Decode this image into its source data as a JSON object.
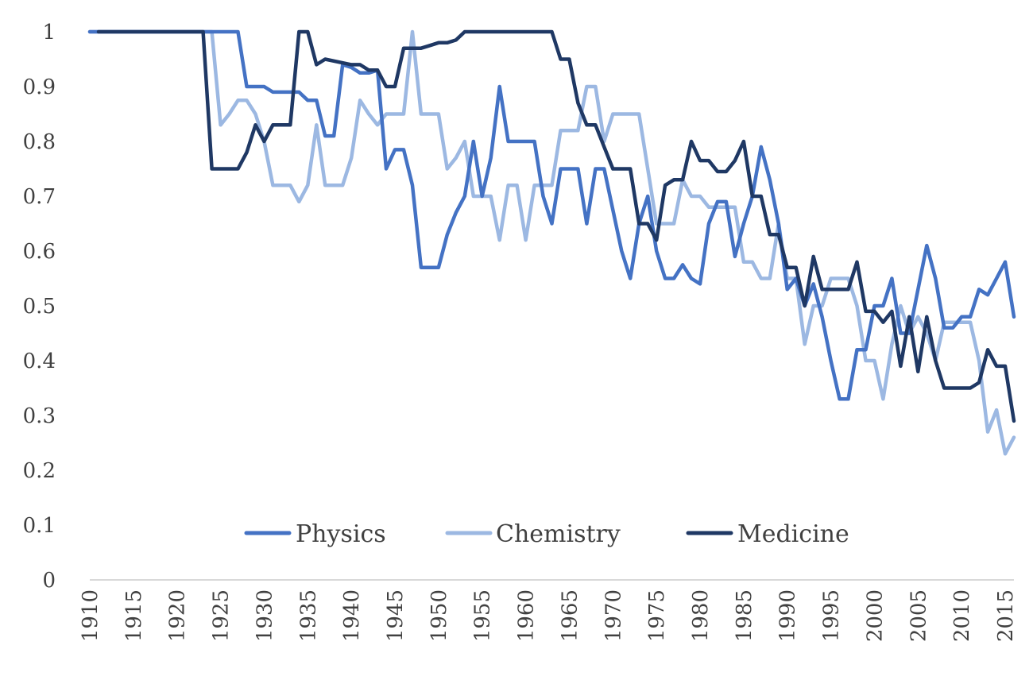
{
  "chart_data": {
    "type": "line",
    "title": "",
    "xlabel": "",
    "ylabel": "",
    "ylim": [
      0,
      1
    ],
    "yticks": [
      "0",
      "0.1",
      "0.2",
      "0.3",
      "0.4",
      "0.5",
      "0.6",
      "0.7",
      "0.8",
      "0.9",
      "1"
    ],
    "xlim": [
      1910,
      2016
    ],
    "xticks": [
      "1910",
      "1915",
      "1920",
      "1925",
      "1930",
      "1935",
      "1940",
      "1945",
      "1950",
      "1955",
      "1960",
      "1965",
      "1970",
      "1975",
      "1980",
      "1985",
      "1990",
      "1995",
      "2000",
      "2005",
      "2010",
      "2015"
    ],
    "grid": false,
    "legend_position": "bottom-center",
    "series": [
      {
        "name": "Physics",
        "color": "#4472c4",
        "points": [
          [
            1910,
            1
          ],
          [
            1924,
            1
          ],
          [
            1926,
            1
          ],
          [
            1927,
            1
          ],
          [
            1928,
            0.9
          ],
          [
            1930,
            0.9
          ],
          [
            1931,
            0.89
          ],
          [
            1934,
            0.89
          ],
          [
            1935,
            0.875
          ],
          [
            1936,
            0.875
          ],
          [
            1937,
            0.81
          ],
          [
            1938,
            0.81
          ],
          [
            1939,
            0.94
          ],
          [
            1940,
            0.935
          ],
          [
            1941,
            0.925
          ],
          [
            1942,
            0.925
          ],
          [
            1943,
            0.93
          ],
          [
            1944,
            0.75
          ],
          [
            1945,
            0.785
          ],
          [
            1946,
            0.785
          ],
          [
            1947,
            0.72
          ],
          [
            1948,
            0.57
          ],
          [
            1950,
            0.57
          ],
          [
            1951,
            0.63
          ],
          [
            1952,
            0.67
          ],
          [
            1953,
            0.7
          ],
          [
            1954,
            0.8
          ],
          [
            1955,
            0.7
          ],
          [
            1956,
            0.77
          ],
          [
            1957,
            0.9
          ],
          [
            1958,
            0.8
          ],
          [
            1961,
            0.8
          ],
          [
            1962,
            0.7
          ],
          [
            1963,
            0.65
          ],
          [
            1964,
            0.75
          ],
          [
            1966,
            0.75
          ],
          [
            1967,
            0.65
          ],
          [
            1968,
            0.75
          ],
          [
            1969,
            0.75
          ],
          [
            1971,
            0.6
          ],
          [
            1972,
            0.55
          ],
          [
            1973,
            0.65
          ],
          [
            1974,
            0.7
          ],
          [
            1975,
            0.6
          ],
          [
            1976,
            0.55
          ],
          [
            1977,
            0.55
          ],
          [
            1978,
            0.575
          ],
          [
            1979,
            0.55
          ],
          [
            1980,
            0.54
          ],
          [
            1981,
            0.65
          ],
          [
            1982,
            0.69
          ],
          [
            1983,
            0.69
          ],
          [
            1984,
            0.59
          ],
          [
            1985,
            0.65
          ],
          [
            1986,
            0.7
          ],
          [
            1987,
            0.79
          ],
          [
            1988,
            0.73
          ],
          [
            1989,
            0.65
          ],
          [
            1990,
            0.53
          ],
          [
            1991,
            0.55
          ],
          [
            1992,
            0.5
          ],
          [
            1993,
            0.54
          ],
          [
            1994,
            0.48
          ],
          [
            1995,
            0.4
          ],
          [
            1996,
            0.33
          ],
          [
            1997,
            0.33
          ],
          [
            1998,
            0.42
          ],
          [
            1999,
            0.42
          ],
          [
            2000,
            0.5
          ],
          [
            2001,
            0.5
          ],
          [
            2002,
            0.55
          ],
          [
            2003,
            0.45
          ],
          [
            2004,
            0.45
          ],
          [
            2005,
            0.53
          ],
          [
            2006,
            0.61
          ],
          [
            2007,
            0.55
          ],
          [
            2008,
            0.46
          ],
          [
            2009,
            0.46
          ],
          [
            2010,
            0.48
          ],
          [
            2011,
            0.48
          ],
          [
            2012,
            0.53
          ],
          [
            2013,
            0.52
          ],
          [
            2014,
            0.55
          ],
          [
            2015,
            0.58
          ],
          [
            2016,
            0.48
          ]
        ]
      },
      {
        "name": "Chemistry",
        "color": "#9cb8e2",
        "points": [
          [
            1910,
            1
          ],
          [
            1924,
            1
          ],
          [
            1925,
            0.83
          ],
          [
            1926,
            0.85
          ],
          [
            1927,
            0.875
          ],
          [
            1928,
            0.875
          ],
          [
            1929,
            0.85
          ],
          [
            1930,
            0.8
          ],
          [
            1931,
            0.72
          ],
          [
            1932,
            0.72
          ],
          [
            1933,
            0.72
          ],
          [
            1934,
            0.69
          ],
          [
            1935,
            0.72
          ],
          [
            1936,
            0.83
          ],
          [
            1937,
            0.72
          ],
          [
            1938,
            0.72
          ],
          [
            1939,
            0.72
          ],
          [
            1940,
            0.77
          ],
          [
            1941,
            0.875
          ],
          [
            1942,
            0.85
          ],
          [
            1943,
            0.83
          ],
          [
            1944,
            0.85
          ],
          [
            1945,
            0.85
          ],
          [
            1946,
            0.85
          ],
          [
            1947,
            1.0
          ],
          [
            1948,
            0.85
          ],
          [
            1950,
            0.85
          ],
          [
            1951,
            0.75
          ],
          [
            1952,
            0.77
          ],
          [
            1953,
            0.8
          ],
          [
            1954,
            0.7
          ],
          [
            1955,
            0.7
          ],
          [
            1956,
            0.7
          ],
          [
            1957,
            0.62
          ],
          [
            1958,
            0.72
          ],
          [
            1959,
            0.72
          ],
          [
            1960,
            0.62
          ],
          [
            1961,
            0.72
          ],
          [
            1962,
            0.72
          ],
          [
            1963,
            0.72
          ],
          [
            1964,
            0.82
          ],
          [
            1965,
            0.82
          ],
          [
            1966,
            0.82
          ],
          [
            1967,
            0.9
          ],
          [
            1968,
            0.9
          ],
          [
            1969,
            0.8
          ],
          [
            1970,
            0.85
          ],
          [
            1973,
            0.85
          ],
          [
            1974,
            0.75
          ],
          [
            1975,
            0.65
          ],
          [
            1976,
            0.65
          ],
          [
            1977,
            0.65
          ],
          [
            1978,
            0.73
          ],
          [
            1979,
            0.7
          ],
          [
            1980,
            0.7
          ],
          [
            1981,
            0.68
          ],
          [
            1983,
            0.68
          ],
          [
            1984,
            0.68
          ],
          [
            1985,
            0.58
          ],
          [
            1986,
            0.58
          ],
          [
            1987,
            0.55
          ],
          [
            1988,
            0.55
          ],
          [
            1989,
            0.65
          ],
          [
            1990,
            0.55
          ],
          [
            1991,
            0.55
          ],
          [
            1992,
            0.43
          ],
          [
            1993,
            0.5
          ],
          [
            1994,
            0.5
          ],
          [
            1995,
            0.55
          ],
          [
            1996,
            0.55
          ],
          [
            1997,
            0.55
          ],
          [
            1998,
            0.5
          ],
          [
            1999,
            0.4
          ],
          [
            2000,
            0.4
          ],
          [
            2001,
            0.33
          ],
          [
            2002,
            0.43
          ],
          [
            2003,
            0.5
          ],
          [
            2004,
            0.45
          ],
          [
            2005,
            0.48
          ],
          [
            2006,
            0.45
          ],
          [
            2007,
            0.4
          ],
          [
            2008,
            0.47
          ],
          [
            2009,
            0.47
          ],
          [
            2010,
            0.47
          ],
          [
            2011,
            0.47
          ],
          [
            2012,
            0.4
          ],
          [
            2013,
            0.27
          ],
          [
            2014,
            0.31
          ],
          [
            2015,
            0.23
          ],
          [
            2016,
            0.26
          ]
        ]
      },
      {
        "name": "Medicine",
        "color": "#1f3864",
        "points": [
          [
            1911,
            1
          ],
          [
            1923,
            1
          ],
          [
            1924,
            0.75
          ],
          [
            1926,
            0.75
          ],
          [
            1927,
            0.75
          ],
          [
            1928,
            0.78
          ],
          [
            1929,
            0.83
          ],
          [
            1930,
            0.8
          ],
          [
            1931,
            0.83
          ],
          [
            1932,
            0.83
          ],
          [
            1933,
            0.83
          ],
          [
            1934,
            1.0
          ],
          [
            1935,
            1.0
          ],
          [
            1936,
            0.94
          ],
          [
            1937,
            0.95
          ],
          [
            1940,
            0.94
          ],
          [
            1941,
            0.94
          ],
          [
            1942,
            0.93
          ],
          [
            1943,
            0.93
          ],
          [
            1944,
            0.9
          ],
          [
            1945,
            0.9
          ],
          [
            1946,
            0.97
          ],
          [
            1947,
            0.97
          ],
          [
            1948,
            0.97
          ],
          [
            1949,
            0.975
          ],
          [
            1950,
            0.98
          ],
          [
            1951,
            0.98
          ],
          [
            1952,
            0.985
          ],
          [
            1953,
            1.0
          ],
          [
            1963,
            1.0
          ],
          [
            1964,
            0.95
          ],
          [
            1965,
            0.95
          ],
          [
            1966,
            0.87
          ],
          [
            1967,
            0.83
          ],
          [
            1968,
            0.83
          ],
          [
            1969,
            0.79
          ],
          [
            1970,
            0.75
          ],
          [
            1971,
            0.75
          ],
          [
            1972,
            0.75
          ],
          [
            1973,
            0.65
          ],
          [
            1974,
            0.65
          ],
          [
            1975,
            0.62
          ],
          [
            1976,
            0.72
          ],
          [
            1977,
            0.73
          ],
          [
            1978,
            0.73
          ],
          [
            1979,
            0.8
          ],
          [
            1980,
            0.765
          ],
          [
            1981,
            0.765
          ],
          [
            1982,
            0.745
          ],
          [
            1983,
            0.745
          ],
          [
            1984,
            0.765
          ],
          [
            1985,
            0.8
          ],
          [
            1986,
            0.7
          ],
          [
            1987,
            0.7
          ],
          [
            1988,
            0.63
          ],
          [
            1989,
            0.63
          ],
          [
            1990,
            0.57
          ],
          [
            1991,
            0.57
          ],
          [
            1992,
            0.5
          ],
          [
            1993,
            0.59
          ],
          [
            1994,
            0.53
          ],
          [
            1995,
            0.53
          ],
          [
            1996,
            0.53
          ],
          [
            1997,
            0.53
          ],
          [
            1998,
            0.58
          ],
          [
            1999,
            0.49
          ],
          [
            2000,
            0.49
          ],
          [
            2001,
            0.47
          ],
          [
            2002,
            0.49
          ],
          [
            2003,
            0.39
          ],
          [
            2004,
            0.48
          ],
          [
            2005,
            0.38
          ],
          [
            2006,
            0.48
          ],
          [
            2007,
            0.4
          ],
          [
            2008,
            0.35
          ],
          [
            2009,
            0.35
          ],
          [
            2010,
            0.35
          ],
          [
            2011,
            0.35
          ],
          [
            2012,
            0.36
          ],
          [
            2013,
            0.42
          ],
          [
            2014,
            0.39
          ],
          [
            2015,
            0.39
          ],
          [
            2016,
            0.29
          ]
        ]
      }
    ]
  }
}
